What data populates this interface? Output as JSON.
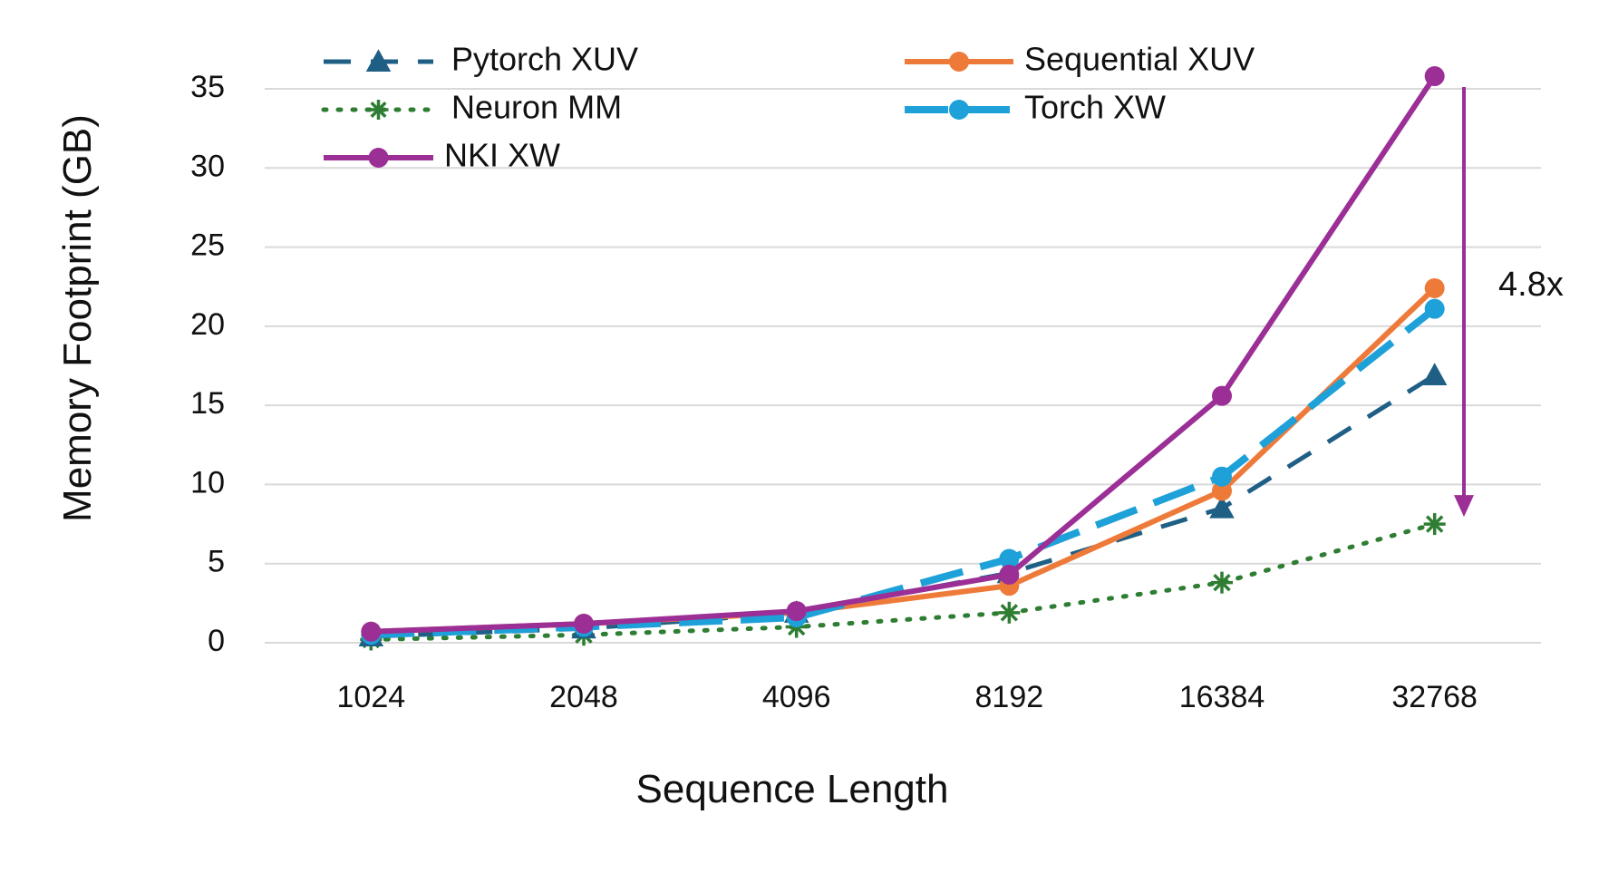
{
  "chart_data": {
    "type": "line",
    "title": "",
    "xlabel": "Sequence Length",
    "ylabel": "Memory Footprint (GB)",
    "categories": [
      "1024",
      "2048",
      "4096",
      "8192",
      "16384",
      "32768"
    ],
    "ylim": [
      0,
      35
    ],
    "yticks": [
      0,
      5,
      10,
      15,
      20,
      25,
      30,
      35
    ],
    "grid": "horizontal",
    "legend_position": "top",
    "series": [
      {
        "name": "Pytorch XUV",
        "values": [
          0.4,
          0.9,
          1.9,
          4.4,
          8.5,
          16.9
        ],
        "color": "#1f5f85",
        "style": "dashed",
        "marker": "triangle"
      },
      {
        "name": "Neuron MM",
        "values": [
          0.2,
          0.5,
          1.0,
          1.9,
          3.8,
          7.5
        ],
        "color": "#2e7d32",
        "style": "dotted",
        "marker": "asterisk"
      },
      {
        "name": "NKI XW",
        "values": [
          0.7,
          1.2,
          2.0,
          4.3,
          15.6,
          35.8
        ],
        "color": "#9b2f96",
        "style": "solid",
        "marker": "circle"
      },
      {
        "name": "Sequential XUV",
        "values": [
          0.7,
          1.2,
          1.9,
          3.6,
          9.6,
          22.4
        ],
        "color": "#ee7a3a",
        "style": "solid",
        "marker": "circle"
      },
      {
        "name": "Torch XW",
        "values": [
          0.5,
          1.0,
          1.6,
          5.3,
          10.5,
          21.1
        ],
        "color": "#1ea1d8",
        "style": "longdash",
        "marker": "circle"
      }
    ],
    "annotations": [
      {
        "text": "4.8x",
        "type": "arrow",
        "from_value": 35.8,
        "to_value": 7.5,
        "color": "#9b2f96"
      }
    ]
  }
}
